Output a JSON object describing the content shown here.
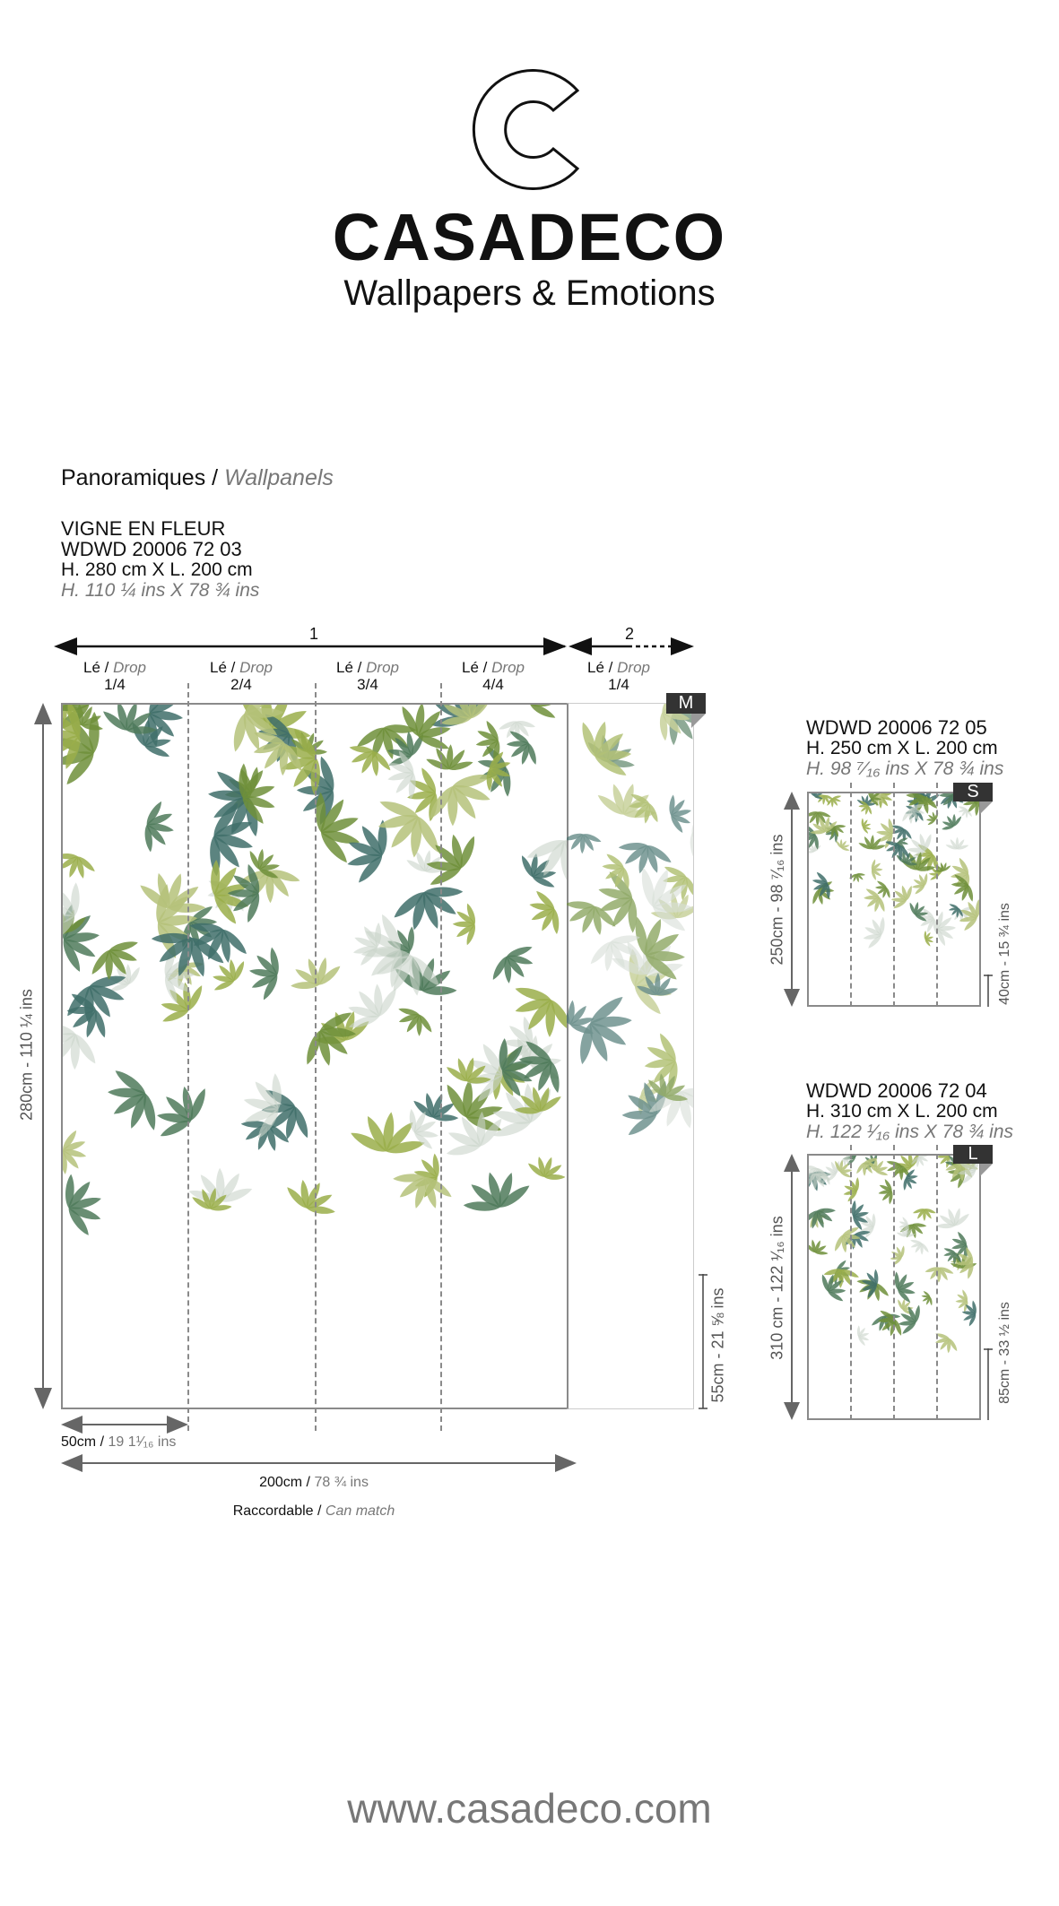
{
  "brand": {
    "logo_letter": "C",
    "name": "CASADECO",
    "tagline": "Wallpapers & Emotions"
  },
  "section": {
    "title": "Panoramiques",
    "separator": "/",
    "title_en": "Wallpanels"
  },
  "main_product": {
    "name": "VIGNE EN FLEUR",
    "ref": "WDWD 20006 72 03",
    "size_cm": "H. 280 cm X L. 200 cm",
    "size_in": "H. 110 ¼ ins X 78 ¾ ins",
    "badge": "M",
    "rolls": [
      {
        "label": "1"
      },
      {
        "label": "2"
      }
    ],
    "drops": [
      {
        "fr": "Lé",
        "sep": "/",
        "en": "Drop",
        "fraction": "1/4"
      },
      {
        "fr": "Lé",
        "sep": "/",
        "en": "Drop",
        "fraction": "2/4"
      },
      {
        "fr": "Lé",
        "sep": "/",
        "en": "Drop",
        "fraction": "3/4"
      },
      {
        "fr": "Lé",
        "sep": "/",
        "en": "Drop",
        "fraction": "4/4"
      },
      {
        "fr": "Lé",
        "sep": "/",
        "en": "Drop",
        "fraction": "1/4"
      }
    ],
    "height_label": "280cm - 110 ¼ ins",
    "repeat_label": "55cm - 21 ⅝ ins",
    "drop_width": {
      "cm": "50cm",
      "sep": "/",
      "in": "19 1¹⁄₁₆ ins"
    },
    "total_width": {
      "cm": "200cm",
      "sep": "/",
      "in": "78 ¾ ins"
    },
    "match": {
      "fr": "Raccordable",
      "sep": "/",
      "en": "Can match"
    }
  },
  "variants": [
    {
      "ref": "WDWD 20006 72 05",
      "size_cm": "H. 250 cm X L. 200 cm",
      "size_in": "H. 98 ⁷⁄₁₆ ins X 78 ¾ ins",
      "badge": "S",
      "height_label": "250cm - 98 ⁷⁄₁₆ ins",
      "repeat_label": "40cm - 15 ¾ ins"
    },
    {
      "ref": "WDWD 20006 72 04",
      "size_cm": "H. 310 cm X L. 200 cm",
      "size_in": "H. 122 ¹⁄₁₆ ins X 78 ¾ ins",
      "badge": "L",
      "height_label": "310 cm - 122 ¹⁄₁₆ ins",
      "repeat_label": "85cm - 33 ½ ins"
    }
  ],
  "footer": {
    "url": "www.casadeco.com"
  },
  "colors": {
    "text": "#111111",
    "muted": "#777777",
    "line": "#8a8a8a",
    "badge": "#333333",
    "leaf_greens": [
      "#6f8f3a",
      "#9aae4a",
      "#4f7a5a",
      "#3f6e6a",
      "#b5c27a",
      "#c9d3c9"
    ]
  }
}
